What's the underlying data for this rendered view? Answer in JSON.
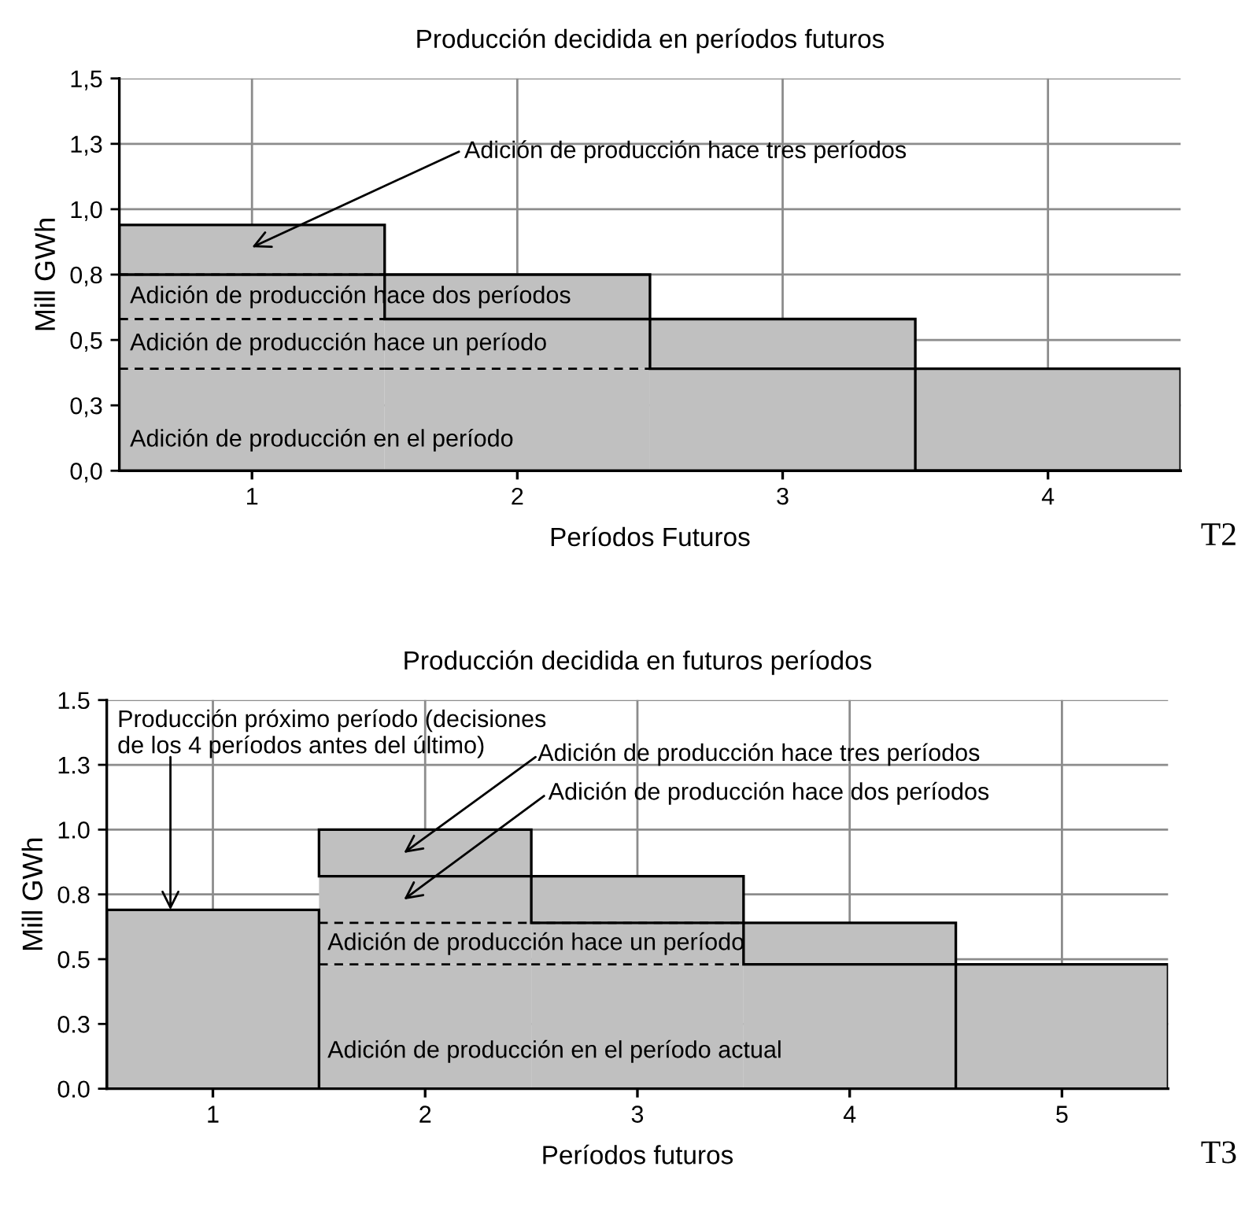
{
  "chart_data": [
    {
      "type": "bar",
      "stacked": true,
      "title": "Producción decidida en períodos futuros",
      "xlabel": "Períodos Futuros",
      "ylabel": "Mill GWh",
      "categories": [
        "1",
        "2",
        "3",
        "4"
      ],
      "series": [
        {
          "name": "Adición de producción en el período",
          "color": "#c0c0c0",
          "values": [
            0.39,
            0.39,
            0.39,
            0.39
          ]
        },
        {
          "name": "Adición de producción hace un período",
          "color": "#c0c0c0",
          "values": [
            0.19,
            0.19,
            0.19,
            null
          ]
        },
        {
          "name": "Adición de producción hace dos períodos",
          "color": "#c0c0c0",
          "values": [
            0.17,
            0.17,
            null,
            null
          ]
        },
        {
          "name": "Adición de producción hace tres períodos",
          "color": "#c0c0c0",
          "values": [
            0.19,
            null,
            null,
            null
          ]
        }
      ],
      "ylim": [
        0,
        1.5
      ],
      "yticks": [
        {
          "value": 0,
          "label": "0,0"
        },
        {
          "value": 0.25,
          "label": "0,3"
        },
        {
          "value": 0.5,
          "label": "0,5"
        },
        {
          "value": 0.75,
          "label": "0,8"
        },
        {
          "value": 1.0,
          "label": "1,0"
        },
        {
          "value": 1.25,
          "label": "1,3"
        },
        {
          "value": 1.5,
          "label": "1,5"
        }
      ],
      "grid": true,
      "annotations": [
        "T2"
      ]
    },
    {
      "type": "bar",
      "stacked": true,
      "title": "Producción decidida en futuros períodos",
      "xlabel": "Períodos futuros",
      "ylabel": "Mill GWh",
      "categories": [
        "1",
        "2",
        "3",
        "4",
        "5"
      ],
      "series": [
        {
          "name": "Producción próximo período (decisiones\nde los 4 períodos antes del último)",
          "color": "#c0c0c0",
          "values": [
            0.69,
            null,
            null,
            null,
            null
          ]
        },
        {
          "name": "Adición de producción en el período actual",
          "color": "#c0c0c0",
          "values": [
            null,
            0.48,
            0.48,
            0.48,
            0.48
          ]
        },
        {
          "name": "Adición de producción hace un período",
          "color": "#c0c0c0",
          "values": [
            null,
            0.16,
            0.16,
            0.16,
            null
          ]
        },
        {
          "name": "Adición de producción hace dos períodos",
          "color": "#c0c0c0",
          "values": [
            null,
            0.18,
            0.18,
            null,
            null
          ]
        },
        {
          "name": "Adición de producción hace tres períodos",
          "color": "#c0c0c0",
          "values": [
            null,
            0.18,
            null,
            null,
            null
          ]
        }
      ],
      "ylim": [
        0,
        1.5
      ],
      "yticks": [
        {
          "value": 0,
          "label": "0.0"
        },
        {
          "value": 0.25,
          "label": "0.3"
        },
        {
          "value": 0.5,
          "label": "0.5"
        },
        {
          "value": 0.75,
          "label": "0.8"
        },
        {
          "value": 1.0,
          "label": "1.0"
        },
        {
          "value": 1.25,
          "label": "1.3"
        },
        {
          "value": 1.5,
          "label": "1.5"
        }
      ],
      "grid": true,
      "annotations": [
        "T3"
      ]
    }
  ]
}
